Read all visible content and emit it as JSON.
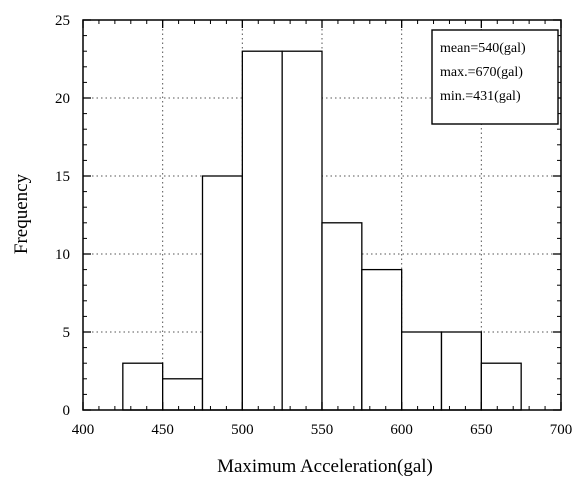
{
  "chart_data": {
    "type": "bar",
    "title": "",
    "xlabel": "Maximum Acceleration(gal)",
    "ylabel": "Frequency",
    "xlim": [
      400,
      700
    ],
    "ylim": [
      0,
      25
    ],
    "xticks": [
      "400",
      "450",
      "500",
      "550",
      "600",
      "650",
      "700"
    ],
    "yticks": [
      "0",
      "5",
      "10",
      "15",
      "20",
      "25"
    ],
    "grid": true,
    "bins": [
      {
        "start": 425,
        "end": 450,
        "value": 3
      },
      {
        "start": 450,
        "end": 475,
        "value": 2
      },
      {
        "start": 475,
        "end": 500,
        "value": 15
      },
      {
        "start": 500,
        "end": 525,
        "value": 23
      },
      {
        "start": 525,
        "end": 550,
        "value": 23
      },
      {
        "start": 550,
        "end": 575,
        "value": 12
      },
      {
        "start": 575,
        "end": 600,
        "value": 9
      },
      {
        "start": 600,
        "end": 625,
        "value": 5
      },
      {
        "start": 625,
        "end": 650,
        "value": 5
      },
      {
        "start": 650,
        "end": 675,
        "value": 3
      }
    ],
    "annotation": [
      "mean=540(gal)",
      "max.=670(gal)",
      "min.=431(gal)"
    ],
    "annotation_position": "top-right"
  }
}
